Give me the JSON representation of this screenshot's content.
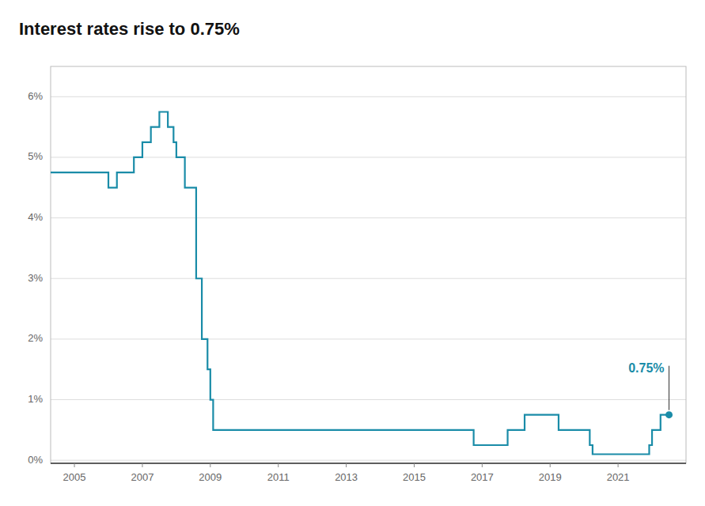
{
  "chart_data": {
    "type": "line",
    "title": "Interest rates rise to 0.75%",
    "color": "#1a8ca8",
    "annotations": [
      "0.75%"
    ],
    "grid": true,
    "xlim": [
      2004.3,
      2023.0
    ],
    "ylim": [
      -0.05,
      6.5
    ],
    "xticks": [
      2005,
      2007,
      2009,
      2011,
      2013,
      2015,
      2017,
      2019,
      2021
    ],
    "yticks": [
      {
        "value": 0,
        "label": "0%"
      },
      {
        "value": 1,
        "label": "1%"
      },
      {
        "value": 2,
        "label": "2%"
      },
      {
        "value": 3,
        "label": "3%"
      },
      {
        "value": 4,
        "label": "4%"
      },
      {
        "value": 5,
        "label": "5%"
      },
      {
        "value": 6,
        "label": "6%"
      }
    ],
    "x": [
      2004.3,
      2006.0,
      2006.0,
      2006.25,
      2006.25,
      2006.75,
      2006.75,
      2007.0,
      2007.0,
      2007.25,
      2007.25,
      2007.5,
      2007.5,
      2007.75,
      2007.75,
      2007.917,
      2007.917,
      2008.0,
      2008.0,
      2008.25,
      2008.25,
      2008.583,
      2008.583,
      2008.75,
      2008.75,
      2008.917,
      2008.917,
      2009.0,
      2009.0,
      2009.083,
      2009.083,
      2016.75,
      2016.75,
      2017.75,
      2017.75,
      2018.25,
      2018.25,
      2019.25,
      2019.25,
      2019.583,
      2020.167,
      2020.167,
      2020.25,
      2020.25,
      2021.917,
      2021.917,
      2022.0,
      2022.0,
      2022.25,
      2022.25,
      2022.5
    ],
    "values": [
      4.75,
      4.75,
      4.5,
      4.5,
      4.75,
      4.75,
      5.0,
      5.0,
      5.25,
      5.25,
      5.5,
      5.5,
      5.75,
      5.75,
      5.5,
      5.5,
      5.25,
      5.25,
      5.0,
      5.0,
      4.5,
      4.5,
      3.0,
      3.0,
      2.0,
      2.0,
      1.5,
      1.5,
      1.0,
      1.0,
      0.5,
      0.5,
      0.25,
      0.25,
      0.5,
      0.5,
      0.75,
      0.75,
      0.5,
      0.5,
      0.5,
      0.25,
      0.25,
      0.1,
      0.1,
      0.25,
      0.25,
      0.5,
      0.5,
      0.75,
      0.75
    ]
  }
}
